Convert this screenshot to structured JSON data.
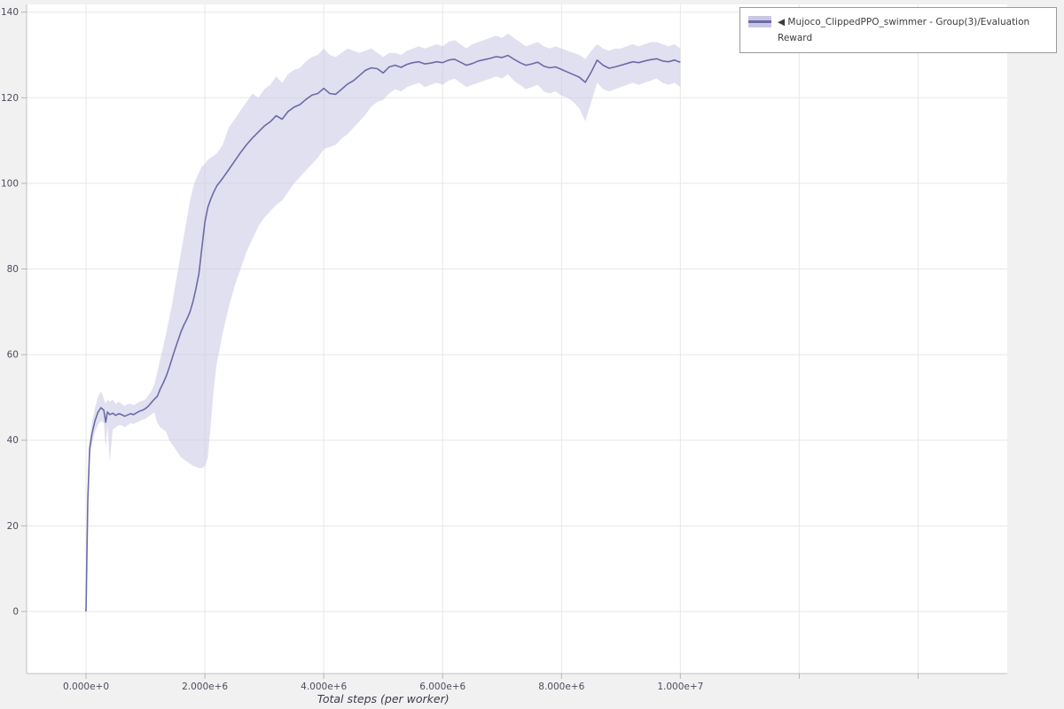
{
  "legend": {
    "collapse_icon": "◀",
    "label": "Mujoco_ClippedPPO_swimmer - Group(3)/Evaluation Reward"
  },
  "chart_data": {
    "type": "line",
    "title": "",
    "xlabel": "Total steps (per worker)",
    "ylabel": "",
    "legend_position": "top-right-outside",
    "grid": true,
    "xlim": [
      -1000000,
      15500000
    ],
    "ylim": [
      -14.5,
      141.8
    ],
    "x_scale": 1000000,
    "x_ticks": [
      {
        "value": 0,
        "label": "0.000e+0"
      },
      {
        "value": 2000000,
        "label": "2.000e+6"
      },
      {
        "value": 4000000,
        "label": "4.000e+6"
      },
      {
        "value": 6000000,
        "label": "6.000e+6"
      },
      {
        "value": 8000000,
        "label": "8.000e+6"
      },
      {
        "value": 10000000,
        "label": "1.000e+7"
      },
      {
        "value": 12000000,
        "label": ""
      },
      {
        "value": 14000000,
        "label": ""
      }
    ],
    "y_ticks": [
      0,
      20,
      40,
      60,
      80,
      100,
      120,
      140
    ],
    "colors": {
      "line": "#6b6aa8",
      "band": "#c9c6e4",
      "band_opacity": 0.55,
      "grid": "#e7e7e7",
      "axis_line": "#c0c0c0",
      "tick_mark": "#b5b5b5",
      "tick_label": "#4c4c5e",
      "axis_title": "#3a3a4a",
      "plot_background": "#ffffff",
      "page_background": "#f1f1f2"
    },
    "series": [
      {
        "name": "Mujoco_ClippedPPO_swimmer - Group(3)/Evaluation Reward",
        "x_millions": [
          0,
          0.03,
          0.06,
          0.1,
          0.15,
          0.2,
          0.25,
          0.3,
          0.33,
          0.36,
          0.4,
          0.45,
          0.5,
          0.55,
          0.6,
          0.65,
          0.7,
          0.75,
          0.8,
          0.85,
          0.9,
          0.95,
          1.0,
          1.05,
          1.1,
          1.15,
          1.2,
          1.25,
          1.3,
          1.35,
          1.4,
          1.45,
          1.5,
          1.55,
          1.6,
          1.65,
          1.7,
          1.75,
          1.8,
          1.85,
          1.9,
          1.95,
          2.0,
          2.05,
          2.1,
          2.15,
          2.2,
          2.3,
          2.4,
          2.5,
          2.6,
          2.7,
          2.8,
          2.9,
          3.0,
          3.1,
          3.2,
          3.3,
          3.4,
          3.5,
          3.6,
          3.7,
          3.8,
          3.9,
          4.0,
          4.1,
          4.2,
          4.3,
          4.4,
          4.5,
          4.6,
          4.7,
          4.8,
          4.9,
          5.0,
          5.1,
          5.2,
          5.3,
          5.4,
          5.5,
          5.6,
          5.7,
          5.8,
          5.9,
          6.0,
          6.1,
          6.2,
          6.3,
          6.4,
          6.5,
          6.6,
          6.7,
          6.8,
          6.9,
          7.0,
          7.1,
          7.2,
          7.3,
          7.4,
          7.5,
          7.6,
          7.7,
          7.8,
          7.9,
          8.0,
          8.1,
          8.2,
          8.3,
          8.4,
          8.5,
          8.6,
          8.7,
          8.8,
          8.9,
          9.0,
          9.1,
          9.2,
          9.3,
          9.4,
          9.5,
          9.6,
          9.7,
          9.8,
          9.9,
          10.0
        ],
        "mean": [
          0,
          26,
          38,
          41.5,
          44.5,
          46.5,
          47.6,
          47.0,
          44.2,
          46.6,
          46.0,
          46.3,
          45.8,
          46.2,
          46.0,
          45.6,
          45.9,
          46.2,
          46.0,
          46.4,
          46.8,
          47.0,
          47.4,
          48.0,
          48.8,
          49.6,
          50.3,
          52.0,
          53.4,
          55.0,
          57.0,
          59.2,
          61.4,
          63.4,
          65.4,
          67.0,
          68.4,
          70.0,
          72.4,
          75.4,
          79.0,
          85.0,
          91.0,
          94.4,
          96.4,
          98.0,
          99.4,
          101.2,
          103.2,
          105.2,
          107.2,
          109.0,
          110.6,
          112.0,
          113.4,
          114.4,
          115.8,
          115.0,
          116.8,
          117.8,
          118.4,
          119.6,
          120.6,
          121.0,
          122.2,
          121.0,
          120.8,
          122.0,
          123.2,
          124.0,
          125.2,
          126.4,
          127.0,
          126.8,
          125.8,
          127.2,
          127.6,
          127.1,
          127.8,
          128.2,
          128.4,
          127.9,
          128.1,
          128.4,
          128.2,
          128.8,
          129.0,
          128.3,
          127.6,
          128.0,
          128.6,
          128.9,
          129.2,
          129.6,
          129.4,
          129.9,
          129.0,
          128.2,
          127.6,
          127.9,
          128.3,
          127.4,
          127.0,
          127.2,
          126.6,
          126.0,
          125.4,
          124.8,
          123.6,
          126.0,
          128.8,
          127.6,
          126.9,
          127.2,
          127.6,
          128.0,
          128.4,
          128.2,
          128.6,
          128.9,
          129.1,
          128.6,
          128.4,
          128.8,
          128.3
        ],
        "low": [
          0,
          25,
          36,
          39,
          42,
          43.5,
          44.5,
          44,
          38,
          43.5,
          35,
          42.5,
          43,
          43.5,
          43.5,
          43,
          43.5,
          44,
          43.8,
          44.2,
          44.5,
          44.8,
          45,
          45.5,
          46,
          46.5,
          44,
          43,
          42.5,
          42,
          40,
          39,
          38,
          37,
          36,
          35.5,
          35,
          34.5,
          34,
          33.8,
          33.5,
          33.5,
          34,
          36,
          44,
          52,
          58,
          65,
          71,
          76,
          80,
          84,
          87,
          90,
          92,
          93.5,
          95,
          96,
          98,
          100,
          101.5,
          103,
          104.5,
          106,
          108,
          108.5,
          109,
          110.5,
          111.5,
          113,
          114.5,
          116,
          118,
          119,
          119.5,
          121,
          122,
          121.5,
          122.5,
          123,
          123.5,
          122.5,
          123,
          123.5,
          123,
          124,
          124.5,
          123.5,
          122.5,
          123,
          123.5,
          124,
          124.5,
          125,
          124.5,
          125.5,
          124,
          123,
          122,
          122.5,
          123,
          121.5,
          121,
          121.5,
          120.5,
          120,
          119,
          117.5,
          114.5,
          119,
          123.5,
          122,
          121.5,
          122,
          122.5,
          123,
          123.5,
          123,
          123.5,
          124,
          124.5,
          123.5,
          123,
          123.5,
          122.5
        ],
        "high": [
          0.5,
          27,
          40,
          44,
          47.5,
          50,
          51.5,
          49.8,
          48.5,
          49.5,
          49,
          49.5,
          48.5,
          49,
          48.5,
          48,
          48.5,
          48.5,
          48.2,
          48.6,
          49,
          49.2,
          49.6,
          50.5,
          51.5,
          53,
          56,
          59,
          62,
          65,
          68.5,
          72,
          76,
          80,
          84,
          88,
          92,
          96,
          99,
          101,
          102.5,
          104,
          104.5,
          105.5,
          106,
          106.5,
          107,
          109,
          113,
          115,
          117,
          119,
          121,
          120,
          122,
          123,
          125,
          123.5,
          125.5,
          126.5,
          127,
          128.5,
          129.5,
          130,
          131.5,
          130,
          129.5,
          130.5,
          131.5,
          131,
          130.5,
          131,
          131.5,
          130.5,
          129.5,
          130.5,
          130.5,
          130,
          131,
          131.5,
          132,
          131.5,
          132,
          132.5,
          132,
          133,
          133.5,
          132.5,
          131.5,
          132.5,
          133,
          133.5,
          134,
          134.5,
          134,
          135,
          134,
          133,
          132,
          132.5,
          133,
          132,
          131.5,
          132,
          131.5,
          131,
          130.5,
          130,
          129,
          131,
          132.5,
          131.5,
          131,
          131.5,
          131.5,
          132,
          132.5,
          132,
          132.5,
          133,
          133,
          132.5,
          132,
          132.5,
          131.5
        ]
      }
    ]
  }
}
